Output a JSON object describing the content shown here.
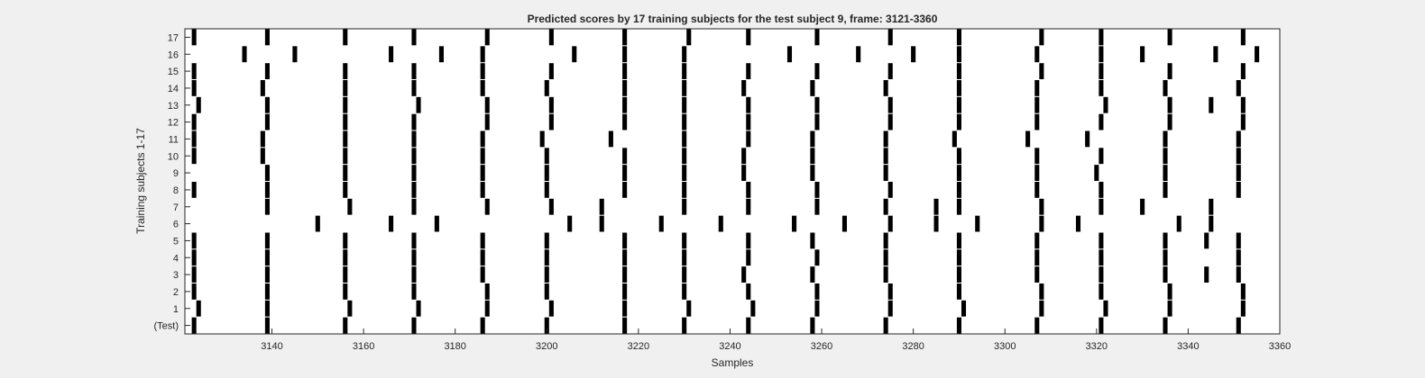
{
  "chart_data": {
    "type": "raster",
    "title": "Predicted scores by 17 training subjects for the test subject 9, frame: 3121-3360",
    "xlabel": "Samples",
    "ylabel": "Training subjects 1-17",
    "xlim": [
      3121,
      3360
    ],
    "x_ticks": [
      3140,
      3160,
      3180,
      3200,
      3220,
      3240,
      3260,
      3280,
      3300,
      3320,
      3340,
      3360
    ],
    "y_tick_labels": [
      "(Test)",
      "1",
      "2",
      "3",
      "4",
      "5",
      "6",
      "7",
      "8",
      "9",
      "10",
      "11",
      "12",
      "13",
      "14",
      "15",
      "16",
      "17"
    ],
    "bar_width": 1,
    "rows": [
      {
        "label": "(Test)",
        "events": [
          3123,
          3139,
          3156,
          3171,
          3186,
          3200,
          3217,
          3230,
          3244,
          3258,
          3274,
          3290,
          3307,
          3321,
          3335,
          3351
        ]
      },
      {
        "label": "1",
        "events": [
          3124,
          3139,
          3157,
          3172,
          3187,
          3201,
          3217,
          3231,
          3245,
          3259,
          3275,
          3291,
          3308,
          3322,
          3336,
          3352
        ]
      },
      {
        "label": "2",
        "events": [
          3123,
          3139,
          3156,
          3171,
          3187,
          3200,
          3217,
          3230,
          3244,
          3259,
          3275,
          3290,
          3308,
          3321,
          3336,
          3352
        ]
      },
      {
        "label": "3",
        "events": [
          3123,
          3139,
          3156,
          3171,
          3186,
          3200,
          3217,
          3230,
          3243,
          3258,
          3274,
          3290,
          3307,
          3321,
          3335,
          3344,
          3351
        ]
      },
      {
        "label": "4",
        "events": [
          3123,
          3139,
          3156,
          3171,
          3186,
          3200,
          3217,
          3230,
          3244,
          3259,
          3274,
          3290,
          3307,
          3321,
          3335,
          3351
        ]
      },
      {
        "label": "5",
        "events": [
          3123,
          3139,
          3156,
          3171,
          3186,
          3200,
          3217,
          3230,
          3244,
          3258,
          3274,
          3290,
          3307,
          3321,
          3335,
          3344,
          3351
        ]
      },
      {
        "label": "6",
        "events": [
          3150,
          3166,
          3176,
          3205,
          3212,
          3225,
          3238,
          3254,
          3265,
          3275,
          3285,
          3294,
          3308,
          3316,
          3338,
          3345
        ]
      },
      {
        "label": "7",
        "events": [
          3139,
          3157,
          3171,
          3187,
          3201,
          3212,
          3230,
          3244,
          3259,
          3274,
          3285,
          3290,
          3308,
          3321,
          3330,
          3345
        ]
      },
      {
        "label": "8",
        "events": [
          3123,
          3139,
          3156,
          3171,
          3186,
          3200,
          3217,
          3230,
          3244,
          3259,
          3275,
          3290,
          3307,
          3321,
          3335,
          3351
        ]
      },
      {
        "label": "9",
        "events": [
          3139,
          3156,
          3171,
          3186,
          3200,
          3217,
          3230,
          3243,
          3258,
          3274,
          3290,
          3307,
          3320,
          3335,
          3351
        ]
      },
      {
        "label": "10",
        "events": [
          3123,
          3138,
          3156,
          3171,
          3186,
          3200,
          3217,
          3230,
          3243,
          3258,
          3274,
          3290,
          3307,
          3321,
          3335,
          3351
        ]
      },
      {
        "label": "11",
        "events": [
          3123,
          3138,
          3156,
          3171,
          3186,
          3199,
          3214,
          3230,
          3244,
          3258,
          3274,
          3289,
          3305,
          3318,
          3335,
          3351
        ]
      },
      {
        "label": "12",
        "events": [
          3123,
          3139,
          3156,
          3171,
          3187,
          3201,
          3217,
          3230,
          3244,
          3259,
          3275,
          3290,
          3307,
          3321,
          3336,
          3352
        ]
      },
      {
        "label": "13",
        "events": [
          3124,
          3139,
          3156,
          3172,
          3187,
          3201,
          3217,
          3230,
          3244,
          3259,
          3275,
          3290,
          3307,
          3322,
          3336,
          3345,
          3352
        ]
      },
      {
        "label": "14",
        "events": [
          3123,
          3138,
          3156,
          3171,
          3186,
          3200,
          3217,
          3230,
          3243,
          3258,
          3274,
          3290,
          3307,
          3321,
          3335,
          3351
        ]
      },
      {
        "label": "15",
        "events": [
          3123,
          3139,
          3156,
          3171,
          3186,
          3201,
          3217,
          3230,
          3244,
          3259,
          3275,
          3290,
          3308,
          3321,
          3336,
          3352
        ]
      },
      {
        "label": "16",
        "events": [
          3134,
          3145,
          3166,
          3177,
          3186,
          3206,
          3217,
          3230,
          3253,
          3268,
          3280,
          3290,
          3307,
          3321,
          3330,
          3346,
          3355
        ]
      },
      {
        "label": "17",
        "events": [
          3123,
          3139,
          3156,
          3171,
          3187,
          3201,
          3217,
          3231,
          3244,
          3259,
          3275,
          3290,
          3308,
          3321,
          3336,
          3352
        ]
      }
    ]
  }
}
